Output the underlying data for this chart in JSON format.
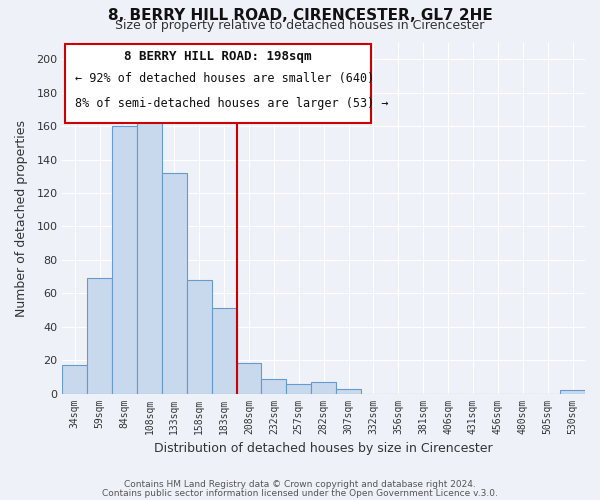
{
  "title": "8, BERRY HILL ROAD, CIRENCESTER, GL7 2HE",
  "subtitle": "Size of property relative to detached houses in Cirencester",
  "xlabel": "Distribution of detached houses by size in Cirencester",
  "ylabel": "Number of detached properties",
  "footer_line1": "Contains HM Land Registry data © Crown copyright and database right 2024.",
  "footer_line2": "Contains public sector information licensed under the Open Government Licence v.3.0.",
  "bar_labels": [
    "34sqm",
    "59sqm",
    "84sqm",
    "108sqm",
    "133sqm",
    "158sqm",
    "183sqm",
    "208sqm",
    "232sqm",
    "257sqm",
    "282sqm",
    "307sqm",
    "332sqm",
    "356sqm",
    "381sqm",
    "406sqm",
    "431sqm",
    "456sqm",
    "480sqm",
    "505sqm",
    "530sqm"
  ],
  "bar_values": [
    17,
    69,
    160,
    163,
    132,
    68,
    51,
    18,
    9,
    6,
    7,
    3,
    0,
    0,
    0,
    0,
    0,
    0,
    0,
    0,
    2
  ],
  "bar_color": "#c8d9ee",
  "bar_edgecolor": "#6699cc",
  "vline_x_index": 7,
  "vline_color": "#cc0000",
  "annotation_title": "8 BERRY HILL ROAD: 198sqm",
  "annotation_line1": "← 92% of detached houses are smaller (640)",
  "annotation_line2": "8% of semi-detached houses are larger (53) →",
  "annotation_box_edgecolor": "#cc0000",
  "ylim": [
    0,
    210
  ],
  "yticks": [
    0,
    20,
    40,
    60,
    80,
    100,
    120,
    140,
    160,
    180,
    200
  ],
  "bg_color": "#eef2f8",
  "grid_color": "#ffffff"
}
